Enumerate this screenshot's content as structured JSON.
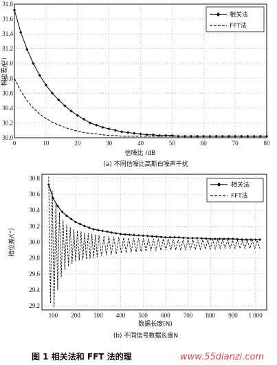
{
  "chart_data": [
    {
      "type": "line",
      "xlabel": "信噪比 /dB",
      "ylabel": "相位差/(°)",
      "caption": "(a) 不同信噪比高斯白噪声干扰",
      "xlim": [
        0,
        80
      ],
      "ylim": [
        30.0,
        31.8
      ],
      "xticks": [
        "0",
        "10",
        "20",
        "30",
        "40",
        "50",
        "60",
        "70",
        "80"
      ],
      "yticks": [
        "30.0",
        "30.2",
        "30.4",
        "30.6",
        "30.8",
        "31.0",
        "31.2",
        "31.4",
        "31.6",
        "31.8"
      ],
      "grid": true,
      "legend": "top-right",
      "x": [
        0,
        2,
        4,
        6,
        8,
        10,
        12,
        14,
        16,
        18,
        20,
        22,
        24,
        26,
        28,
        30,
        32,
        34,
        36,
        38,
        40,
        42,
        44,
        46,
        48,
        50,
        52,
        54,
        56,
        58,
        60,
        62,
        64,
        66,
        68,
        70,
        72,
        74,
        76,
        78,
        80
      ],
      "series": [
        {
          "name": "相关法",
          "style": "solid-diamond",
          "values": [
            31.72,
            31.42,
            31.19,
            31.0,
            30.84,
            30.71,
            30.6,
            30.51,
            30.43,
            30.36,
            30.3,
            30.25,
            30.2,
            30.17,
            30.14,
            30.12,
            30.1,
            30.08,
            30.07,
            30.06,
            30.05,
            30.04,
            30.04,
            30.03,
            30.03,
            30.03,
            30.02,
            30.02,
            30.02,
            30.02,
            30.02,
            30.02,
            30.02,
            30.02,
            30.02,
            30.02,
            30.02,
            30.02,
            30.02,
            30.02,
            30.02
          ]
        },
        {
          "name": "FFT法",
          "style": "dashed",
          "values": [
            30.8,
            30.63,
            30.5,
            30.4,
            30.32,
            30.26,
            30.21,
            30.17,
            30.14,
            30.11,
            30.09,
            30.07,
            30.06,
            30.05,
            30.04,
            30.03,
            30.03,
            30.02,
            30.02,
            30.02,
            30.02,
            30.02,
            30.02,
            30.02,
            30.02,
            30.02,
            30.02,
            30.02,
            30.02,
            30.02,
            30.02,
            30.02,
            30.02,
            30.02,
            30.02,
            30.02,
            30.02,
            30.02,
            30.02,
            30.02,
            30.02
          ]
        }
      ]
    },
    {
      "type": "line",
      "xlabel": "数据长度(N)",
      "ylabel": "相位差/(°)",
      "caption": "(b) 不同信号数据长度N",
      "xlim": [
        50,
        1050
      ],
      "ylim": [
        29.15,
        30.85
      ],
      "xticks": [
        "100",
        "200",
        "300",
        "400",
        "500",
        "600",
        "700",
        "800",
        "900",
        "1 000"
      ],
      "yticks": [
        "29.2",
        "29.4",
        "29.6",
        "29.8",
        "30.0",
        "30.2",
        "30.4",
        "30.6",
        "30.8"
      ],
      "grid": true,
      "legend": "top-right",
      "series": [
        {
          "name": "相关法",
          "style": "solid-diamond",
          "x": [
            80,
            100,
            120,
            140,
            160,
            180,
            200,
            240,
            280,
            320,
            360,
            400,
            450,
            500,
            550,
            600,
            650,
            700,
            750,
            800,
            850,
            900,
            950,
            1000,
            1024
          ],
          "values": [
            30.72,
            30.55,
            30.45,
            30.38,
            30.33,
            30.29,
            30.25,
            30.2,
            30.16,
            30.14,
            30.12,
            30.1,
            30.09,
            30.08,
            30.07,
            30.06,
            30.06,
            30.05,
            30.05,
            30.04,
            30.04,
            30.04,
            30.03,
            30.03,
            30.03
          ]
        },
        {
          "name": "FFT法",
          "style": "dashed-oscillating",
          "envelope_top": [
            30.82,
            30.6,
            30.42,
            30.3,
            30.22,
            30.18,
            30.15,
            30.12,
            30.1,
            30.08,
            30.07,
            30.06,
            30.05,
            30.05,
            30.04,
            30.04,
            30.03,
            30.03,
            30.03,
            30.03,
            30.03,
            30.02,
            30.02,
            30.02,
            30.02
          ],
          "envelope_bottom": [
            29.3,
            29.13,
            29.4,
            29.6,
            29.68,
            29.72,
            29.76,
            29.78,
            29.8,
            29.83,
            29.84,
            29.86,
            29.87,
            29.88,
            29.89,
            29.9,
            29.9,
            29.9,
            29.91,
            29.91,
            29.92,
            29.92,
            29.92,
            29.92,
            29.92
          ]
        }
      ]
    }
  ],
  "figure_title": "图 1   相关法和 FFT 法的理",
  "watermark": "www.55dianzi.com"
}
